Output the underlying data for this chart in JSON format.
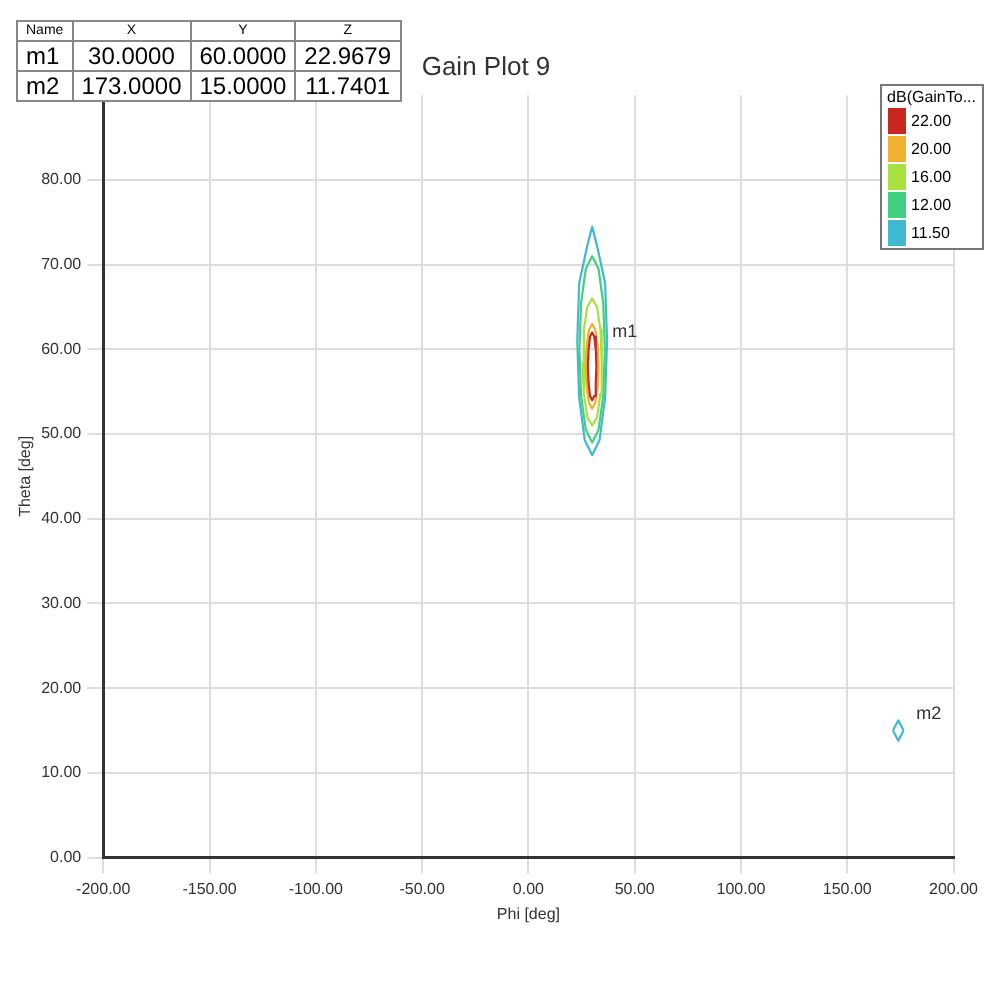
{
  "chart_data": {
    "type": "line",
    "title": "Gain Plot 9",
    "xlabel": "Phi [deg]",
    "ylabel": "Theta [deg]",
    "legend_title": "dB(GainTo...",
    "legend": "top right",
    "grid": true,
    "marker": "none",
    "line_style": "solid",
    "xlim": [
      -200,
      200
    ],
    "xticks": [
      {
        "value": -200,
        "label": "-200.00"
      },
      {
        "value": -150,
        "label": "-150.00"
      },
      {
        "value": -100,
        "label": "-100.00"
      },
      {
        "value": -50,
        "label": "-50.00"
      },
      {
        "value": 0,
        "label": "0.00"
      },
      {
        "value": 50,
        "label": "50.00"
      },
      {
        "value": 100,
        "label": "100.00"
      },
      {
        "value": 150,
        "label": "150.00"
      },
      {
        "value": 200,
        "label": "200.00"
      }
    ],
    "ylim": [
      0,
      90
    ],
    "yticks": [
      {
        "value": 0,
        "label": "0.00"
      },
      {
        "value": 10,
        "label": "10.00"
      },
      {
        "value": 20,
        "label": "20.00"
      },
      {
        "value": 30,
        "label": "30.00"
      },
      {
        "value": 40,
        "label": "40.00"
      },
      {
        "value": 50,
        "label": "50.00"
      },
      {
        "value": 60,
        "label": "60.00"
      },
      {
        "value": 70,
        "label": "70.00"
      },
      {
        "value": 80,
        "label": "80.00"
      }
    ],
    "series": [
      {
        "name": "22.00",
        "color": "#c8281e",
        "x": [
          28,
          28.3,
          29,
          30,
          31,
          31.7,
          32,
          null,
          28,
          28.3,
          29,
          30,
          31,
          31.7,
          32
        ],
        "values": [
          58,
          60,
          61.5,
          62,
          61.5,
          60,
          58,
          null,
          58,
          56,
          54.5,
          54,
          54.5,
          56,
          58
        ]
      },
      {
        "name": "20.00",
        "color": "#f0b030",
        "x": [
          27,
          27.4,
          28.5,
          30,
          31.5,
          32.6,
          33,
          null,
          27,
          27.4,
          28.5,
          30,
          31.5,
          32.6,
          33
        ],
        "values": [
          58,
          60.5,
          62.3,
          63,
          62.3,
          60.5,
          58,
          null,
          58,
          55.5,
          53.7,
          53,
          53.7,
          55.5,
          58
        ]
      },
      {
        "name": "16.00",
        "color": "#a8e040",
        "x": [
          25.5,
          26.1,
          27.7,
          30,
          32.3,
          33.9,
          34.5,
          null,
          25.5,
          26.1,
          27.7,
          30,
          32.3,
          33.9,
          34.5
        ],
        "values": [
          58.5,
          62.3,
          65,
          66,
          65,
          62.3,
          58.5,
          null,
          58.5,
          54.8,
          52,
          51,
          52,
          54.8,
          58.5
        ]
      },
      {
        "name": "12.00",
        "color": "#40d080",
        "x": [
          24,
          24.8,
          27,
          30,
          33,
          35.2,
          36,
          null,
          24,
          24.8,
          27,
          30,
          33,
          35.2,
          36
        ],
        "values": [
          60,
          65.5,
          69.5,
          71,
          69.5,
          65.5,
          60,
          null,
          60,
          54.5,
          50.5,
          49,
          50.5,
          54.5,
          60
        ]
      },
      {
        "name": "11.50",
        "color": "#40b8d0",
        "x": [
          23,
          23.9,
          27.5,
          30,
          32.5,
          36.1,
          37,
          null,
          23,
          23.9,
          26.5,
          30,
          33.5,
          36.1,
          37,
          null,
          171.5,
          174,
          176.5,
          null,
          171.5,
          174,
          176.5
        ],
        "values": [
          61,
          67.8,
          72,
          74.5,
          72,
          67.8,
          61,
          null,
          61,
          54.3,
          49.3,
          47.5,
          49.3,
          54.3,
          61,
          null,
          15,
          16.2,
          15,
          null,
          15,
          13.8,
          15
        ]
      }
    ],
    "annotations": [
      "Name",
      "X",
      "Y",
      "Z",
      "m1",
      "30.0000",
      "60.0000",
      "22.9679",
      "m2",
      "173.0000",
      "15.0000",
      "11.7401",
      {
        "text": "m1",
        "x": 30,
        "y": 60
      },
      {
        "text": "m2",
        "x": 173,
        "y": 15
      }
    ]
  }
}
